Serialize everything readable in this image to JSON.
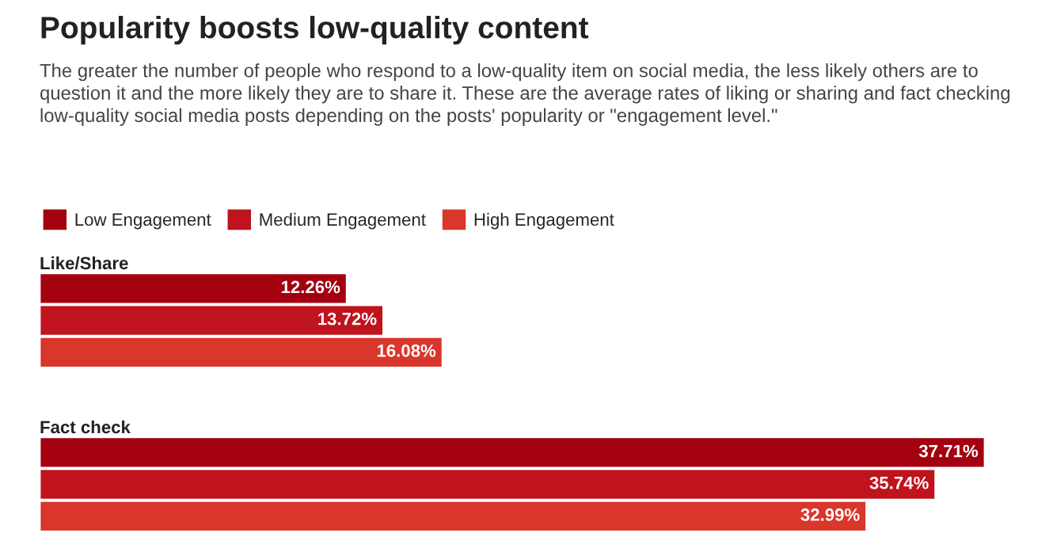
{
  "chart_data": {
    "type": "bar",
    "orientation": "horizontal",
    "title": "Popularity boosts low-quality content",
    "subtitle": "The greater the number of people who respond to a low-quality item on social media, the less likely others are to question it and the more likely they are to share it. These are the average rates of liking or sharing and fact checking low-quality social media posts depending on the posts' popularity or \"engagement level.\"",
    "categories": [
      "Like/Share",
      "Fact check"
    ],
    "series": [
      {
        "name": "Low Engagement",
        "color": "#a30010",
        "values": [
          12.26,
          37.71
        ],
        "value_labels": [
          "12.26%",
          "37.71%"
        ]
      },
      {
        "name": "Medium Engagement",
        "color": "#bf131d",
        "values": [
          13.72,
          35.74
        ],
        "value_labels": [
          "13.72%",
          "35.74%"
        ]
      },
      {
        "name": "High Engagement",
        "color": "#d9362c",
        "values": [
          16.08,
          32.99
        ],
        "value_labels": [
          "16.08%",
          "32.99%"
        ]
      }
    ],
    "legend": "top left"
  }
}
